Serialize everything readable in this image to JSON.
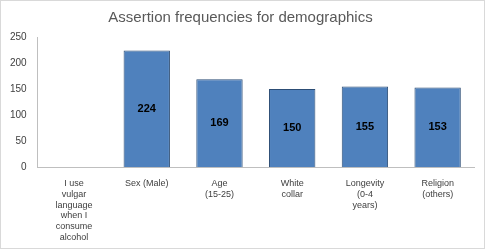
{
  "chart_data": {
    "type": "bar",
    "title": "Assertion frequencies for demographics",
    "categories": [
      "I use vulgar language when I consume alcohol",
      "Sex (Male)",
      "Age (15-25)",
      "White collar",
      "Longevity (0-4 years)",
      "Religion (others)"
    ],
    "values": [
      null,
      224,
      169,
      150,
      155,
      153
    ],
    "color": "#4f81bd",
    "ylim": [
      0,
      250
    ],
    "yticks": [
      0,
      50,
      100,
      150,
      200,
      250
    ],
    "grid": false,
    "data_labels": true
  }
}
